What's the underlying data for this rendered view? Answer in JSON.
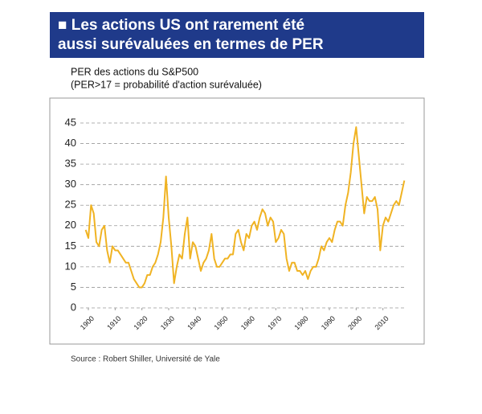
{
  "chart_data": {
    "type": "line",
    "title": [
      "■ Les actions US ont rarement été",
      "aussi surévaluées en termes de PER"
    ],
    "subtitle": [
      "PER des actions du S&P500",
      "(PER>17 = probabilité d'action surévaluée)"
    ],
    "source": "Source : Robert Shiller, Université de Yale",
    "x": [
      1899,
      1900,
      1901,
      1902,
      1903,
      1904,
      1905,
      1906,
      1907,
      1908,
      1909,
      1910,
      1911,
      1912,
      1913,
      1914,
      1915,
      1916,
      1917,
      1918,
      1919,
      1920,
      1921,
      1922,
      1923,
      1924,
      1925,
      1926,
      1927,
      1928,
      1929,
      1930,
      1931,
      1932,
      1933,
      1934,
      1935,
      1936,
      1937,
      1938,
      1939,
      1940,
      1941,
      1942,
      1943,
      1944,
      1945,
      1946,
      1947,
      1948,
      1949,
      1950,
      1951,
      1952,
      1953,
      1954,
      1955,
      1956,
      1957,
      1958,
      1959,
      1960,
      1961,
      1962,
      1963,
      1964,
      1965,
      1966,
      1967,
      1968,
      1969,
      1970,
      1971,
      1972,
      1973,
      1974,
      1975,
      1976,
      1977,
      1978,
      1979,
      1980,
      1981,
      1982,
      1983,
      1984,
      1985,
      1986,
      1987,
      1988,
      1989,
      1990,
      1991,
      1992,
      1993,
      1994,
      1995,
      1996,
      1997,
      1998,
      1999,
      2000,
      2001,
      2002,
      2003,
      2004,
      2005,
      2006,
      2007,
      2008,
      2009,
      2010,
      2011,
      2012,
      2013,
      2014,
      2015,
      2016,
      2017,
      2018
    ],
    "series": [
      {
        "name": "PER",
        "color": "#f0b323",
        "values": [
          19,
          17,
          25,
          23,
          16,
          15,
          19,
          20,
          14,
          11,
          15,
          14,
          14,
          13,
          12,
          11,
          11,
          9,
          7,
          6,
          5,
          5,
          6,
          8,
          8,
          10,
          11,
          13,
          16,
          22,
          32,
          22,
          15,
          6,
          10,
          13,
          12,
          18,
          22,
          12,
          16,
          15,
          12,
          9,
          11,
          12,
          14,
          18,
          12,
          10,
          10,
          11,
          12,
          12,
          13,
          13,
          18,
          19,
          16,
          14,
          18,
          17,
          20,
          21,
          19,
          22,
          24,
          23,
          20,
          22,
          21,
          16,
          17,
          19,
          18,
          12,
          9,
          11,
          11,
          9,
          9,
          8,
          9,
          7,
          9,
          10,
          10,
          12,
          15,
          14,
          16,
          17,
          16,
          19,
          21,
          21,
          20,
          25,
          28,
          33,
          40,
          44,
          37,
          30,
          23,
          27,
          26,
          26,
          27,
          24,
          14,
          20,
          22,
          21,
          23,
          25,
          26,
          25,
          28,
          31
        ]
      }
    ],
    "xlim": [
      1897,
      2020
    ],
    "xticks": [
      1900,
      1910,
      1920,
      1930,
      1940,
      1950,
      1960,
      1970,
      1980,
      1990,
      2000,
      2010
    ],
    "ylim": [
      0,
      45
    ],
    "yticks": [
      0,
      5,
      10,
      15,
      20,
      25,
      30,
      35,
      40,
      45
    ],
    "grid": true
  }
}
